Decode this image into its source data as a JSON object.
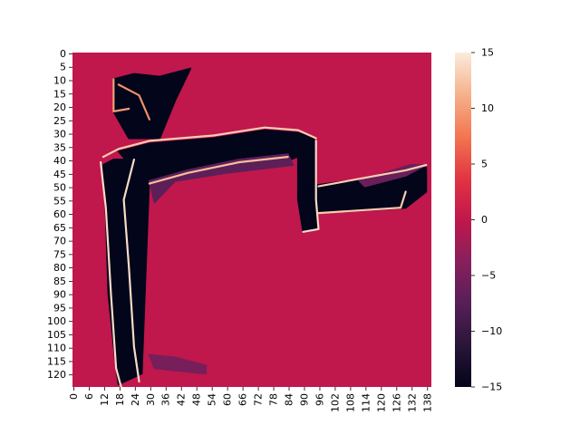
{
  "chart_data": {
    "type": "heatmap",
    "title": "",
    "xlabel": "",
    "ylabel": "",
    "x_ticks": [
      0,
      6,
      12,
      18,
      24,
      30,
      36,
      42,
      48,
      54,
      60,
      66,
      72,
      78,
      84,
      90,
      96,
      102,
      108,
      114,
      120,
      126,
      132,
      138
    ],
    "y_ticks": [
      0,
      5,
      10,
      15,
      20,
      25,
      30,
      35,
      40,
      45,
      50,
      55,
      60,
      65,
      70,
      75,
      80,
      85,
      90,
      95,
      100,
      105,
      110,
      115,
      120
    ],
    "x_range": [
      0,
      140
    ],
    "y_range": [
      0,
      125
    ],
    "colorbar": {
      "ticks": [
        15,
        10,
        5,
        0,
        -5,
        -10,
        -15
      ],
      "vmin": -15,
      "vmax": 15,
      "colormap": "rocket"
    },
    "background_value": 0,
    "regions": [
      {
        "desc": "vertical shape body",
        "value": -15,
        "polygon": [
          [
            12,
            42
          ],
          [
            16,
            40
          ],
          [
            24,
            40
          ],
          [
            30,
            44
          ],
          [
            27,
            120
          ],
          [
            18,
            124
          ],
          [
            17,
            118
          ],
          [
            14,
            90
          ],
          [
            13,
            60
          ]
        ]
      },
      {
        "desc": "horizontal upper arm",
        "value": -15,
        "polygon": [
          [
            18,
            37
          ],
          [
            30,
            34
          ],
          [
            55,
            32
          ],
          [
            75,
            29
          ],
          [
            88,
            30
          ],
          [
            94,
            32
          ],
          [
            95,
            36
          ],
          [
            85,
            40
          ],
          [
            60,
            42
          ],
          [
            40,
            46
          ],
          [
            28,
            48
          ]
        ]
      },
      {
        "desc": "right vertical member",
        "value": -15,
        "polygon": [
          [
            88,
            38
          ],
          [
            95,
            36
          ],
          [
            95,
            55
          ],
          [
            96,
            66
          ],
          [
            90,
            67
          ],
          [
            88,
            55
          ]
        ]
      },
      {
        "desc": "right horizontal bar",
        "value": -15,
        "polygon": [
          [
            92,
            50
          ],
          [
            130,
            45
          ],
          [
            138,
            43
          ],
          [
            138,
            52
          ],
          [
            130,
            58
          ],
          [
            95,
            60
          ]
        ]
      },
      {
        "desc": "top antenna cluster",
        "value": -15,
        "polygon": [
          [
            16,
            10
          ],
          [
            24,
            8
          ],
          [
            34,
            9
          ],
          [
            46,
            6
          ],
          [
            40,
            18
          ],
          [
            34,
            32
          ],
          [
            22,
            32
          ],
          [
            16,
            22
          ]
        ]
      },
      {
        "desc": "shadow gradient under arm",
        "value": -7,
        "polygon": [
          [
            30,
            48
          ],
          [
            45,
            44
          ],
          [
            65,
            40
          ],
          [
            84,
            38
          ],
          [
            86,
            42
          ],
          [
            60,
            45
          ],
          [
            40,
            48
          ],
          [
            32,
            56
          ]
        ]
      },
      {
        "desc": "shadow near right bar",
        "value": -6,
        "polygon": [
          [
            112,
            48
          ],
          [
            132,
            42
          ],
          [
            138,
            42
          ],
          [
            130,
            46
          ],
          [
            114,
            50
          ]
        ]
      },
      {
        "desc": "bottom stray streak",
        "value": -5,
        "polygon": [
          [
            30,
            113
          ],
          [
            40,
            114
          ],
          [
            52,
            117
          ],
          [
            52,
            120
          ],
          [
            32,
            118
          ]
        ]
      }
    ],
    "edge_strokes": [
      {
        "value": 14,
        "points": [
          [
            11,
            41
          ],
          [
            13,
            58
          ],
          [
            15,
            90
          ],
          [
            17,
            118
          ],
          [
            19,
            125
          ]
        ]
      },
      {
        "value": 14,
        "points": [
          [
            24,
            40
          ],
          [
            20,
            55
          ],
          [
            22,
            80
          ],
          [
            24,
            110
          ],
          [
            26,
            123
          ]
        ]
      },
      {
        "value": 13,
        "points": [
          [
            12,
            39
          ],
          [
            18,
            36
          ],
          [
            30,
            33
          ],
          [
            55,
            31
          ],
          [
            75,
            28
          ],
          [
            88,
            29
          ],
          [
            95,
            32
          ]
        ]
      },
      {
        "value": 12,
        "points": [
          [
            30,
            49
          ],
          [
            45,
            45
          ],
          [
            65,
            41
          ],
          [
            84,
            39
          ]
        ]
      },
      {
        "value": 14,
        "points": [
          [
            95,
            33
          ],
          [
            95,
            55
          ],
          [
            96,
            66
          ],
          [
            90,
            67
          ]
        ]
      },
      {
        "value": 13,
        "points": [
          [
            96,
            50
          ],
          [
            130,
            44
          ],
          [
            138,
            42
          ]
        ]
      },
      {
        "value": 13,
        "points": [
          [
            96,
            60
          ],
          [
            128,
            58
          ],
          [
            130,
            52
          ]
        ]
      },
      {
        "value": 10,
        "points": [
          [
            16,
            10
          ],
          [
            16,
            22
          ],
          [
            22,
            21
          ]
        ]
      },
      {
        "value": 9,
        "points": [
          [
            18,
            12
          ],
          [
            26,
            16
          ],
          [
            30,
            25
          ]
        ]
      }
    ]
  }
}
